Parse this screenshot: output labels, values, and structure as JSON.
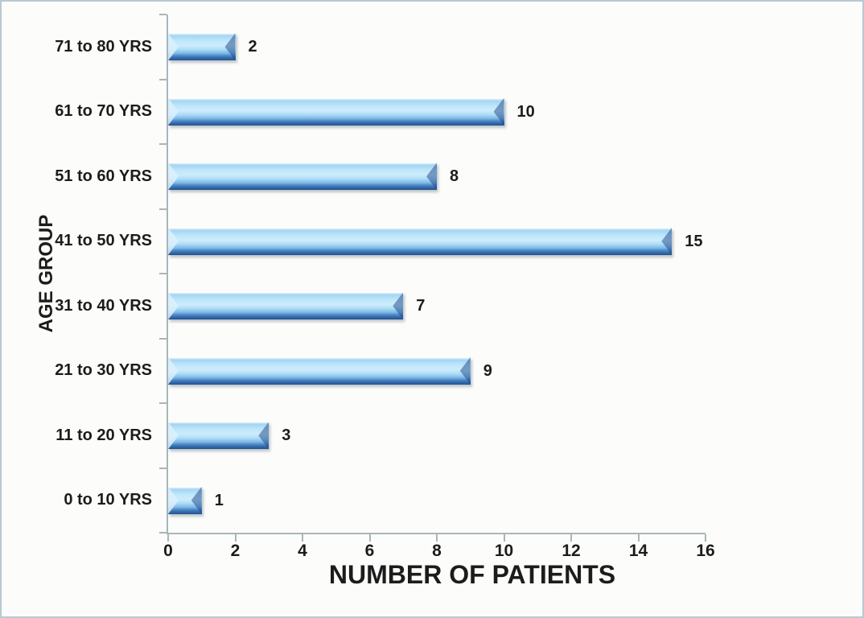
{
  "figure": {
    "background_color": "#fcfcfb",
    "border_color": "#b6cad0",
    "text_color": "#1c1c1c",
    "axis_color": "#a8b6ba"
  },
  "chart_data": {
    "type": "bar",
    "orientation": "horizontal",
    "title": "",
    "xlabel": "NUMBER OF PATIENTS",
    "ylabel": "AGE GROUP",
    "category_order": "top-to-bottom",
    "categories": [
      "71 to 80 YRS",
      "61 to 70 YRS",
      "51 to 60 YRS",
      "41 to 50 YRS",
      "31 to 40 YRS",
      "21 to 30 YRS",
      "11 to 20 YRS",
      "0 to 10 YRS"
    ],
    "values": [
      2,
      10,
      8,
      15,
      7,
      9,
      3,
      1
    ],
    "data_labels": [
      "2",
      "10",
      "8",
      "15",
      "7",
      "9",
      "3",
      "1"
    ],
    "xlim": [
      0,
      16
    ],
    "xticks": [
      0,
      2,
      4,
      6,
      8,
      10,
      12,
      14,
      16
    ],
    "grid": false,
    "legend": false,
    "bar_fill_color": "#bfe6fa",
    "bar_highlight_color": "#cdecfc",
    "bar_edge_color": "#2f64a7",
    "bar_style": "3d-bevel"
  }
}
